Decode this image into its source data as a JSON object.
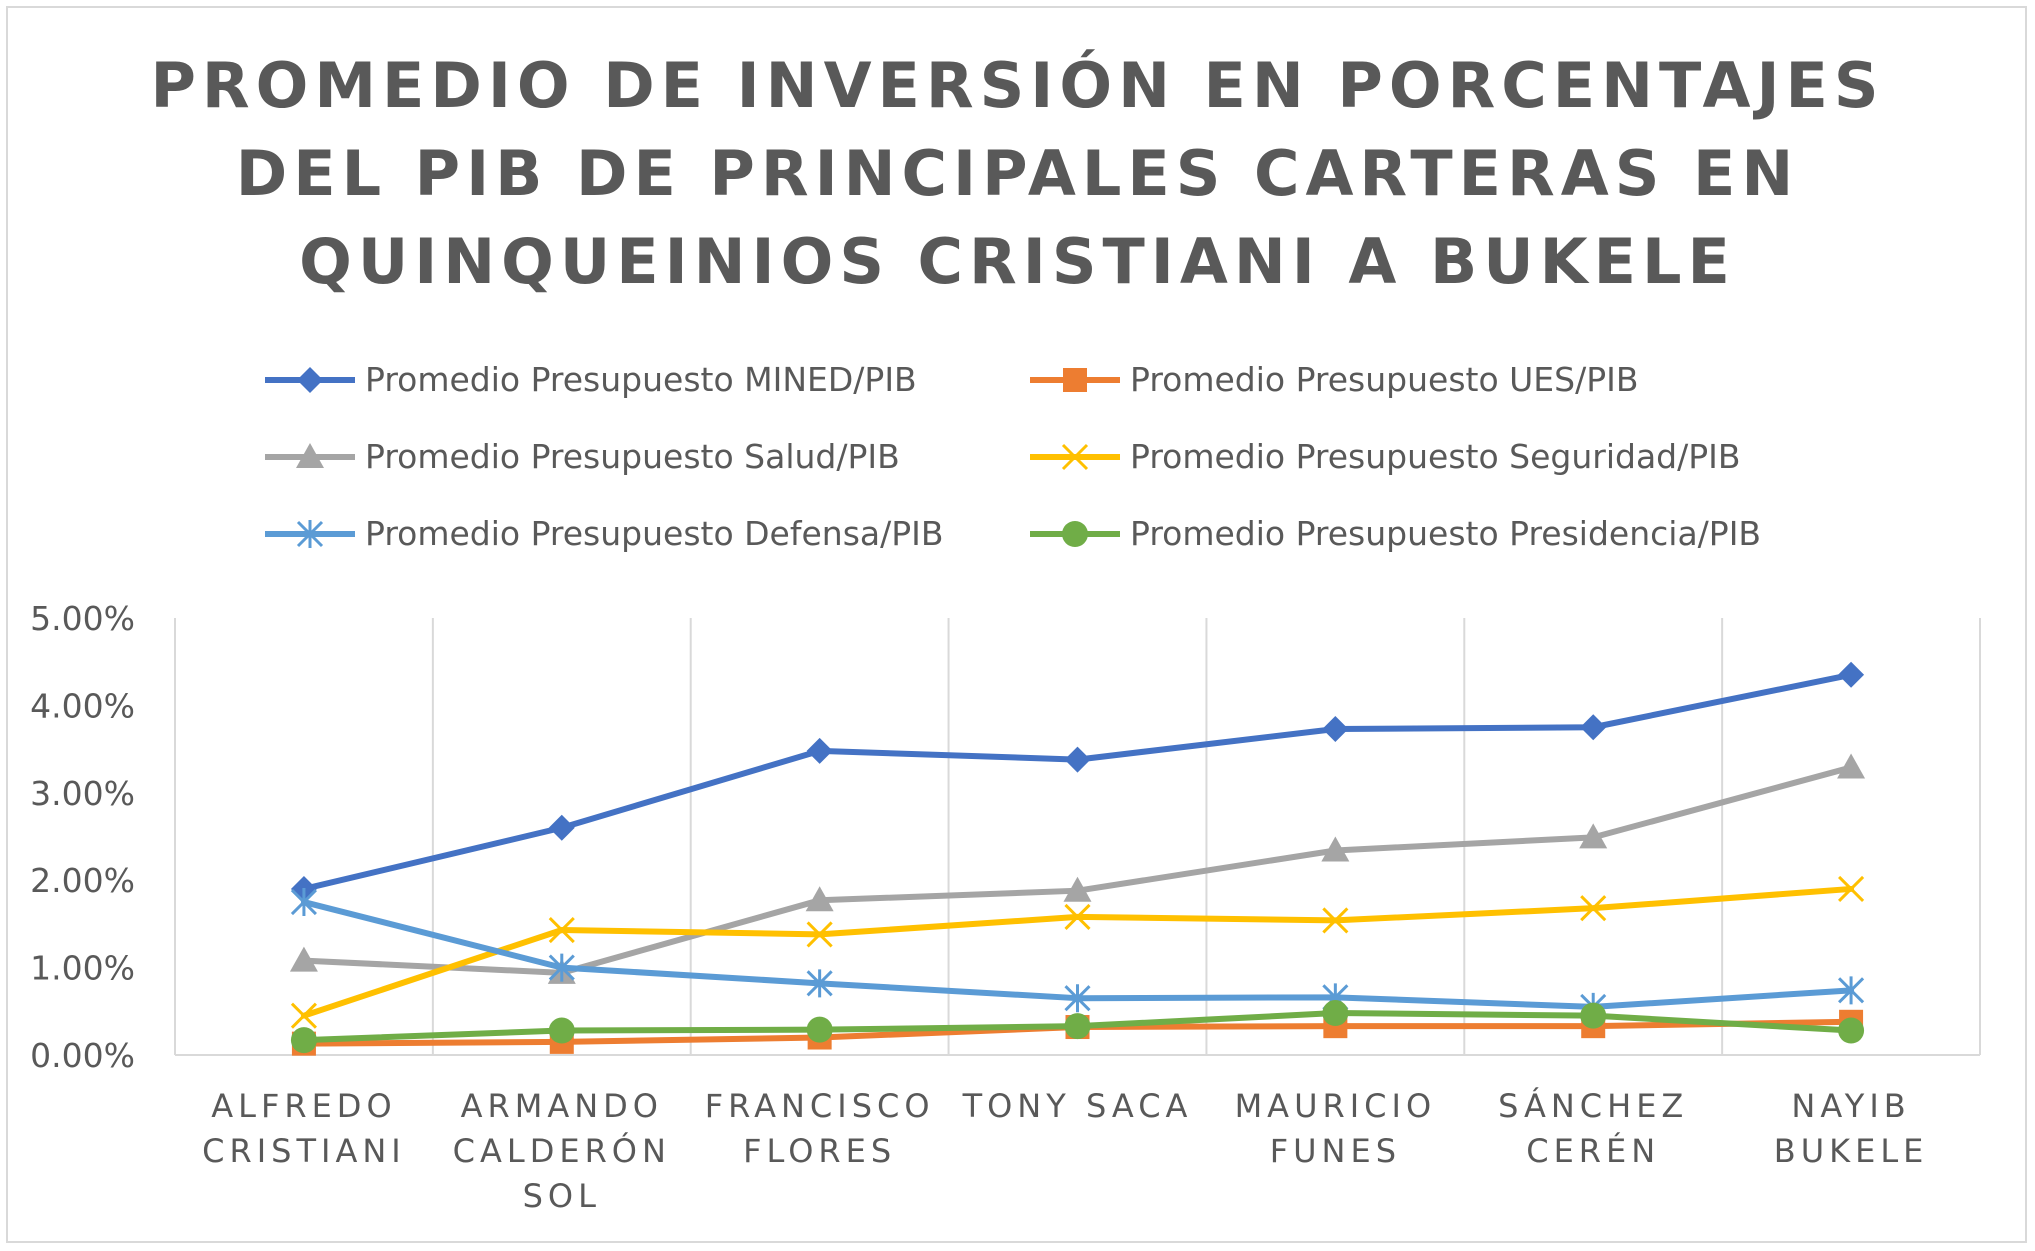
{
  "chart_data": {
    "type": "line",
    "title_lines": [
      "PROMEDIO DE INVERSIÓN EN PORCENTAJES",
      "DEL PIB DE PRINCIPALES CARTERAS EN",
      "QUINQUEINIOS CRISTIANI A BUKELE"
    ],
    "categories": [
      [
        "ALFREDO",
        "CRISTIANI"
      ],
      [
        "ARMANDO",
        "CALDERÓN",
        "SOL"
      ],
      [
        "FRANCISCO",
        "FLORES"
      ],
      [
        "TONY SACA"
      ],
      [
        "MAURICIO",
        "FUNES"
      ],
      [
        "SÁNCHEZ",
        "CERÉN"
      ],
      [
        "NAYIB",
        "BUKELE"
      ]
    ],
    "y_ticks": [
      "0.00%",
      "1.00%",
      "2.00%",
      "3.00%",
      "4.00%",
      "5.00%"
    ],
    "ylim": [
      0,
      5
    ],
    "y_unit": "%",
    "grid": "vertical",
    "legend_position": "top",
    "series": [
      {
        "name": "Promedio Presupuesto MINED/PIB",
        "color": "#4472c4",
        "marker": "diamond",
        "values": [
          1.9,
          2.6,
          3.48,
          3.38,
          3.73,
          3.75,
          4.35
        ]
      },
      {
        "name": "Promedio Presupuesto UES/PIB",
        "color": "#ed7d31",
        "marker": "square",
        "values": [
          0.13,
          0.15,
          0.2,
          0.32,
          0.33,
          0.33,
          0.38
        ]
      },
      {
        "name": "Promedio Presupuesto Salud/PIB",
        "color": "#a5a5a5",
        "marker": "triangle",
        "values": [
          1.08,
          0.94,
          1.77,
          1.88,
          2.34,
          2.49,
          3.29
        ]
      },
      {
        "name": "Promedio Presupuesto Seguridad/PIB",
        "color": "#ffc000",
        "marker": "x",
        "values": [
          0.45,
          1.43,
          1.38,
          1.58,
          1.54,
          1.68,
          1.9
        ]
      },
      {
        "name": "Promedio Presupuesto Defensa/PIB",
        "color": "#5b9bd5",
        "marker": "star",
        "values": [
          1.75,
          1.0,
          0.82,
          0.65,
          0.66,
          0.55,
          0.74
        ]
      },
      {
        "name": "Promedio Presupuesto Presidencia/PIB",
        "color": "#70ad47",
        "marker": "circle",
        "values": [
          0.17,
          0.28,
          0.29,
          0.33,
          0.48,
          0.45,
          0.28
        ]
      }
    ]
  }
}
